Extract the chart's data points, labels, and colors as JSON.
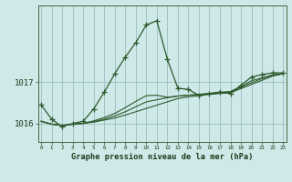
{
  "xlabel": "Graphe pression niveau de la mer (hPa)",
  "background_color": "#cfe8e8",
  "grid_color": "#9bbfbf",
  "line_color": "#2d5a2d",
  "hours": [
    0,
    1,
    2,
    3,
    4,
    5,
    6,
    7,
    8,
    9,
    10,
    11,
    12,
    13,
    14,
    15,
    16,
    17,
    18,
    19,
    20,
    21,
    22,
    23
  ],
  "obs": [
    1016.45,
    1016.1,
    1015.92,
    1016.0,
    1016.05,
    1016.35,
    1016.75,
    1017.2,
    1017.6,
    1017.95,
    1018.38,
    1018.48,
    1017.55,
    1016.85,
    1016.82,
    1016.68,
    1016.72,
    1016.76,
    1016.72,
    1016.92,
    1017.12,
    1017.18,
    1017.22,
    1017.22
  ],
  "fc1": [
    1016.05,
    1015.98,
    1015.95,
    1015.98,
    1016.0,
    1016.03,
    1016.08,
    1016.13,
    1016.2,
    1016.28,
    1016.36,
    1016.44,
    1016.52,
    1016.6,
    1016.64,
    1016.67,
    1016.7,
    1016.72,
    1016.74,
    1016.84,
    1016.94,
    1017.04,
    1017.14,
    1017.2
  ],
  "fc2": [
    1016.05,
    1015.98,
    1015.95,
    1015.98,
    1016.0,
    1016.04,
    1016.1,
    1016.18,
    1016.28,
    1016.4,
    1016.52,
    1016.57,
    1016.62,
    1016.66,
    1016.68,
    1016.7,
    1016.72,
    1016.74,
    1016.76,
    1016.87,
    1016.98,
    1017.08,
    1017.16,
    1017.2
  ],
  "fc3": [
    1016.05,
    1015.98,
    1015.95,
    1015.98,
    1016.0,
    1016.06,
    1016.14,
    1016.24,
    1016.38,
    1016.53,
    1016.67,
    1016.68,
    1016.63,
    1016.66,
    1016.68,
    1016.7,
    1016.72,
    1016.75,
    1016.77,
    1016.89,
    1017.03,
    1017.1,
    1017.17,
    1017.2
  ],
  "yticks": [
    1016,
    1017
  ],
  "ylim": [
    1015.55,
    1018.85
  ],
  "xlim": [
    -0.3,
    23.3
  ]
}
